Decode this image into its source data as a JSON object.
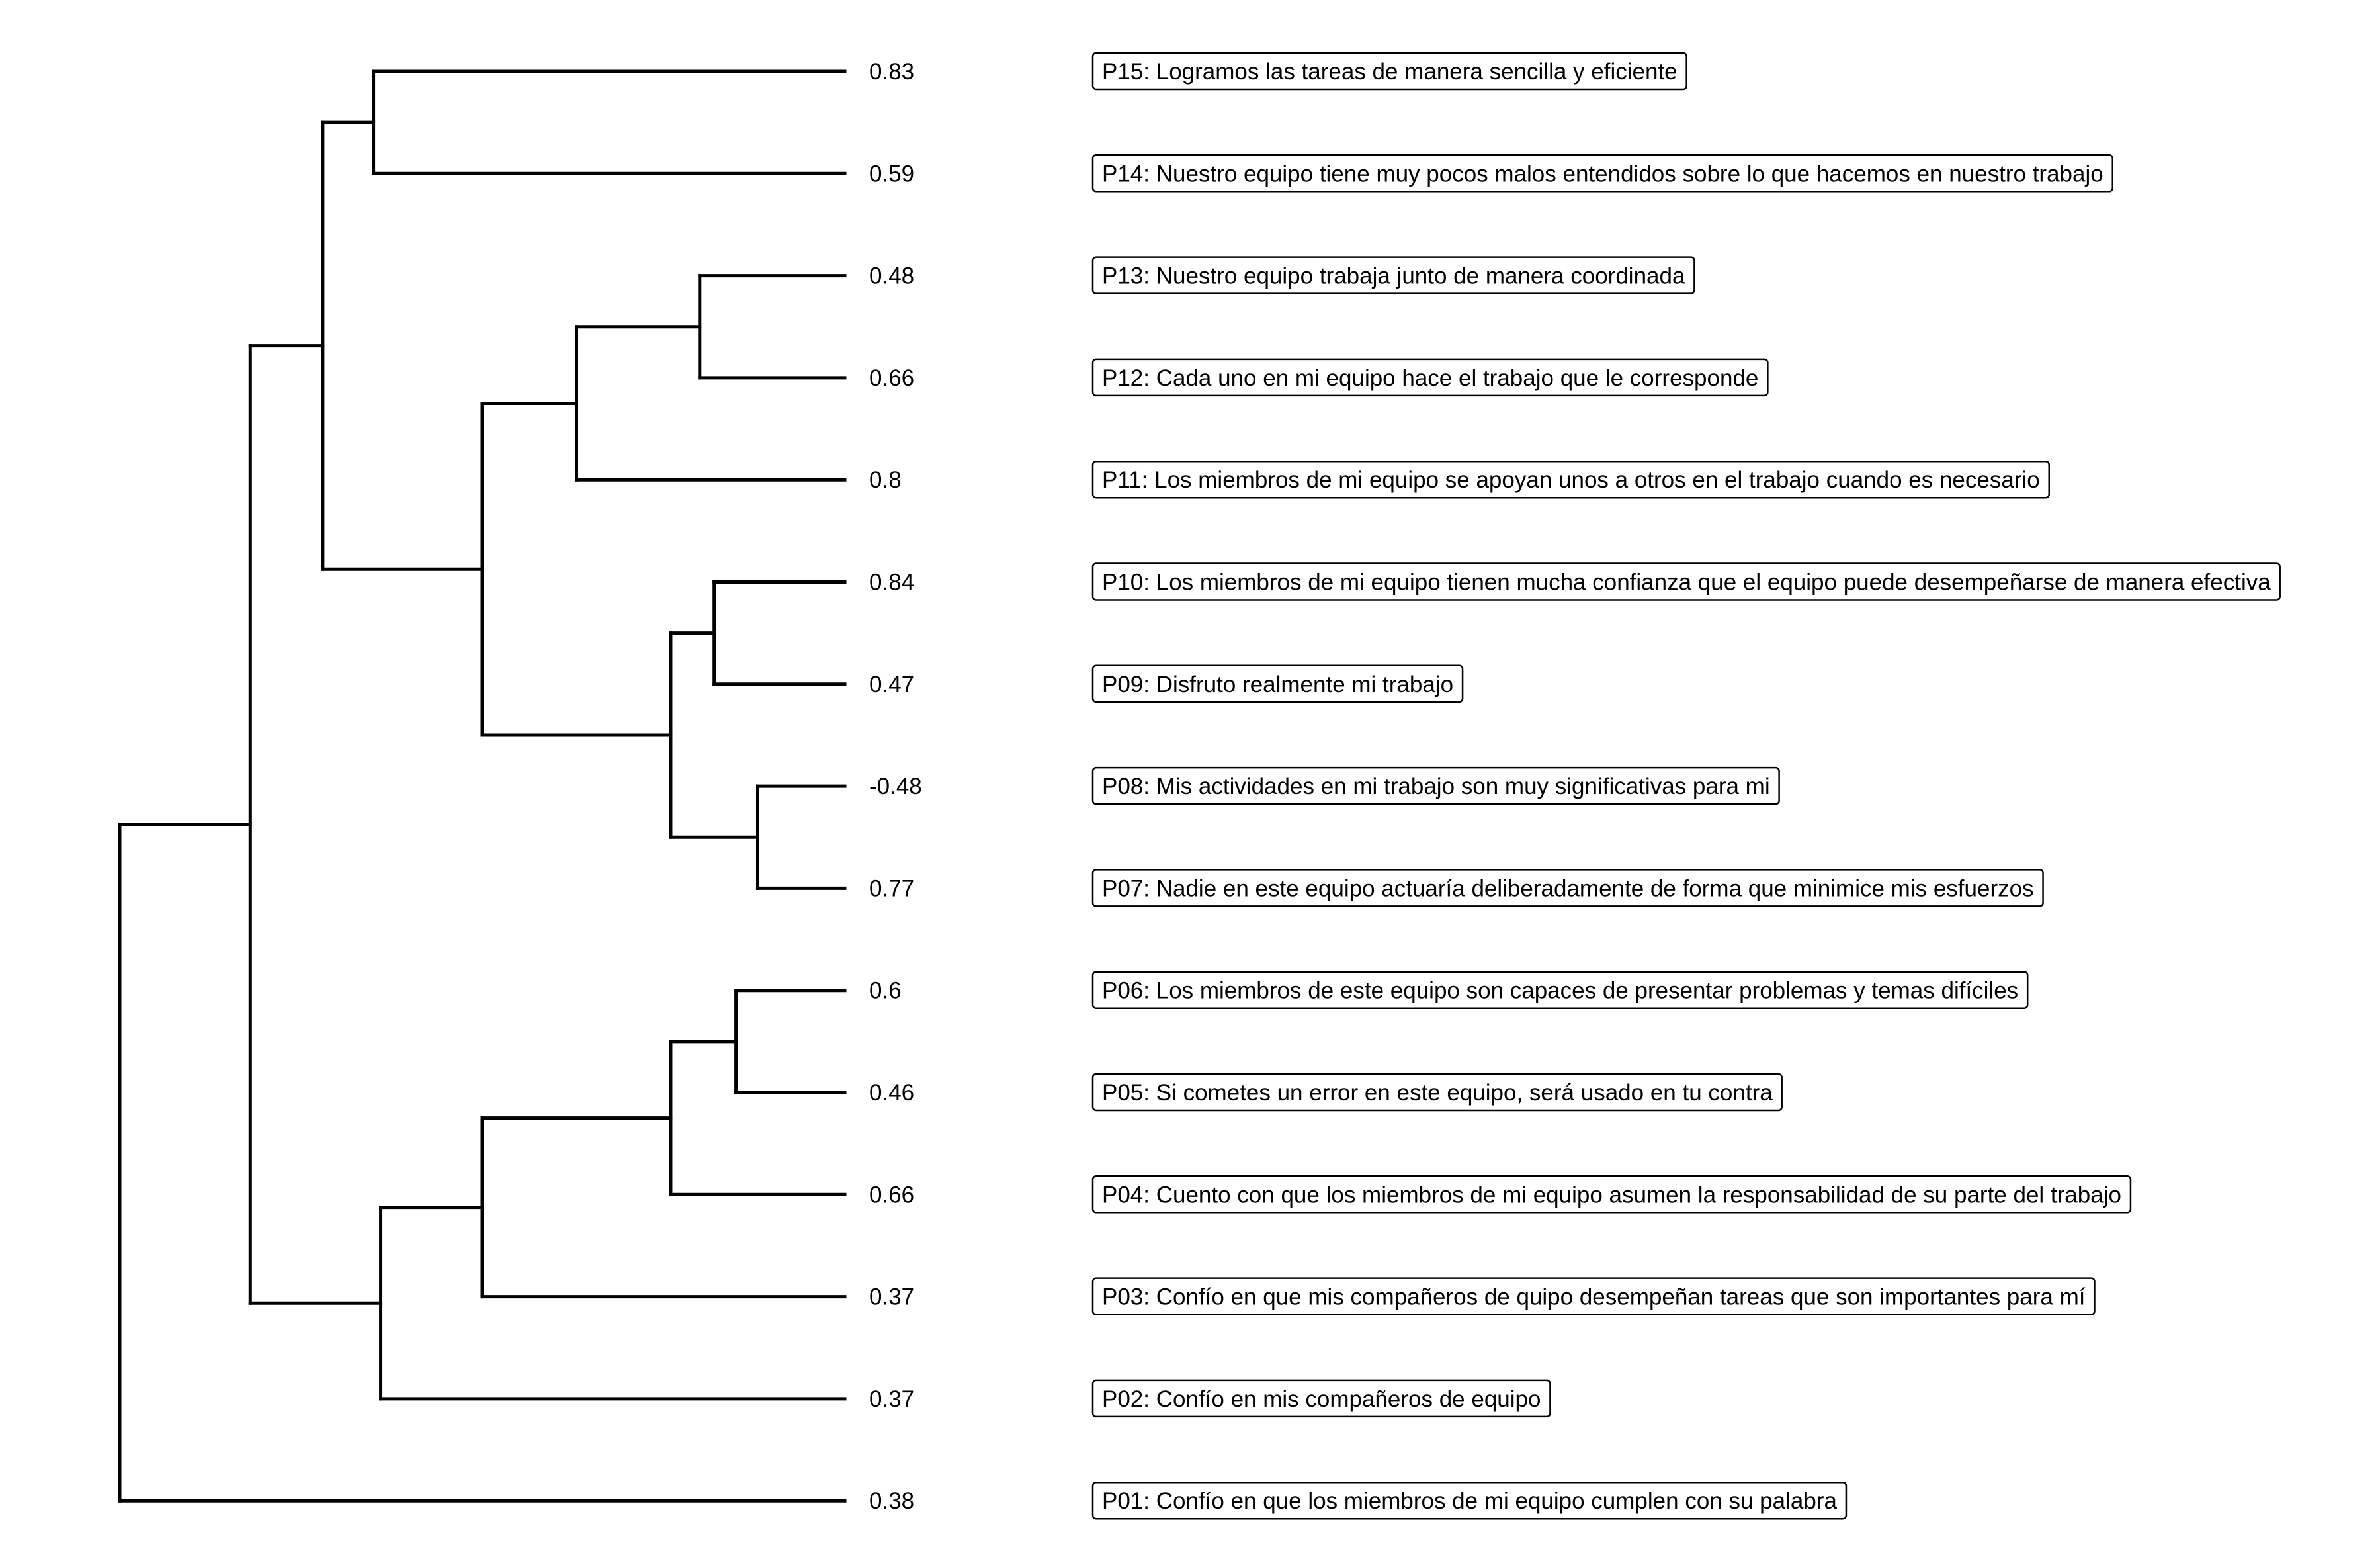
{
  "items": [
    {
      "id": "P15",
      "value": "0.83",
      "label": "P15: Logramos las tareas de manera sencilla y eficiente"
    },
    {
      "id": "P14",
      "value": "0.59",
      "label": "P14: Nuestro equipo tiene muy pocos malos entendidos sobre lo que hacemos en nuestro trabajo"
    },
    {
      "id": "P13",
      "value": "0.48",
      "label": "P13: Nuestro equipo trabaja junto de manera coordinada"
    },
    {
      "id": "P12",
      "value": "0.66",
      "label": "P12: Cada uno en mi equipo hace el trabajo que le corresponde"
    },
    {
      "id": "P11",
      "value": "0.8",
      "label": "P11: Los miembros de mi equipo se apoyan unos a otros en el trabajo cuando es necesario"
    },
    {
      "id": "P10",
      "value": "0.84",
      "label": "P10: Los miembros de mi equipo tienen mucha confianza que el equipo puede desempeñarse de manera efectiva"
    },
    {
      "id": "P09",
      "value": "0.47",
      "label": "P09: Disfruto realmente mi trabajo"
    },
    {
      "id": "P08",
      "value": "-0.48",
      "label": "P08: Mis actividades en mi trabajo son muy significativas para mi"
    },
    {
      "id": "P07",
      "value": "0.77",
      "label": "P07: Nadie en este equipo actuaría deliberadamente de forma que minimice mis esfuerzos"
    },
    {
      "id": "P06",
      "value": "0.6",
      "label": "P06: Los miembros de este equipo son capaces de presentar problemas y temas difíciles"
    },
    {
      "id": "P05",
      "value": "0.46",
      "label": "P05: Si cometes un error en este equipo, será usado en tu contra"
    },
    {
      "id": "P04",
      "value": "0.66",
      "label": "P04: Cuento con que los miembros de mi equipo asumen la responsabilidad de su parte del trabajo"
    },
    {
      "id": "P03",
      "value": "0.37",
      "label": "P03: Confío en que mis compañeros de quipo desempeñan tareas que son importantes para mí"
    },
    {
      "id": "P02",
      "value": "0.37",
      "label": "P02: Confío en mis compañeros de equipo"
    },
    {
      "id": "P01",
      "value": "0.38",
      "label": "P01: Confío en que los miembros de mi equipo cumplen con su palabra"
    }
  ],
  "tree": {
    "height": 1.0,
    "children": [
      {
        "height": 0.82,
        "children": [
          {
            "height": 0.72,
            "children": [
              {
                "height": 0.65,
                "children": [
                  "P15",
                  "P14"
                ]
              },
              {
                "height": 0.5,
                "children": [
                  {
                    "height": 0.37,
                    "children": [
                      {
                        "height": 0.2,
                        "children": [
                          "P13",
                          "P12"
                        ]
                      },
                      "P11"
                    ]
                  },
                  {
                    "height": 0.24,
                    "children": [
                      {
                        "height": 0.18,
                        "children": [
                          "P10",
                          "P09"
                        ]
                      },
                      {
                        "height": 0.12,
                        "children": [
                          "P08",
                          "P07"
                        ]
                      }
                    ]
                  }
                ]
              }
            ]
          },
          {
            "height": 0.64,
            "children": [
              {
                "height": 0.5,
                "children": [
                  {
                    "height": 0.24,
                    "children": [
                      {
                        "height": 0.15,
                        "children": [
                          "P06",
                          "P05"
                        ]
                      },
                      "P04"
                    ]
                  },
                  "P03"
                ]
              },
              "P02"
            ]
          }
        ]
      },
      "P01"
    ]
  }
}
